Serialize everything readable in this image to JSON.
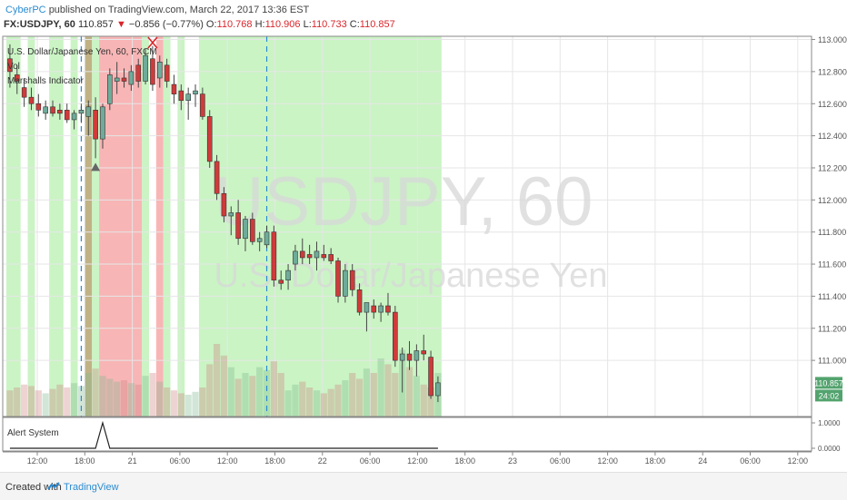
{
  "header": {
    "publisher": "CyberPC",
    "published_text": "published on TradingView.com, March 22, 2017 13:36 EST",
    "symbol": "FX:USDJPY, 60",
    "last": "110.857",
    "change_arrow": "▼",
    "change": "−0.856 (−0.77%)",
    "o_label": "O:",
    "o_value": "110.768",
    "h_label": "H:",
    "h_value": "110.906",
    "l_label": "L:",
    "l_value": "110.733",
    "c_label": "C:",
    "c_value": "110.857"
  },
  "legend": {
    "title": "U.S. Dollar/Japanese Yen, 60, FXCM",
    "vol": "Vol",
    "indicator": "Marshalls Indicator"
  },
  "watermark": {
    "line1": "USDJPY, 60",
    "line2": "U.S. Dollar/Japanese Yen"
  },
  "alert_panel": {
    "title": "Alert System",
    "ticks": [
      "1.0000",
      "0.0000"
    ]
  },
  "price_badges": {
    "last": "110.857",
    "countdown": "24:02"
  },
  "footer": {
    "created_with": "Created with",
    "brand": "TradingView"
  },
  "colors": {
    "up": "#6fab9a",
    "down": "#d13a3a",
    "green_zone": "#b8f0b0",
    "red_zone": "#f7a8a8",
    "olive_zone": "#b5a470",
    "badge": "#53a36e",
    "dashed": "#2a8cd2"
  },
  "chart_data": {
    "type": "candlestick",
    "title": "USDJPY, 60",
    "y_axis_ticks": [
      "113.000",
      "112.800",
      "112.600",
      "112.400",
      "112.200",
      "112.000",
      "111.800",
      "111.600",
      "111.400",
      "111.200",
      "111.000"
    ],
    "ylim": [
      110.65,
      113.02
    ],
    "x_axis_ticks": [
      "12:00",
      "18:00",
      "21",
      "06:00",
      "12:00",
      "18:00",
      "22",
      "06:00",
      "12:00",
      "18:00",
      "23",
      "06:00",
      "12:00",
      "18:00",
      "24",
      "06:00",
      "12:00"
    ],
    "candles": [
      {
        "o": 112.88,
        "h": 112.97,
        "l": 112.7,
        "c": 112.8
      },
      {
        "o": 112.78,
        "h": 112.84,
        "l": 112.66,
        "c": 112.74
      },
      {
        "o": 112.7,
        "h": 112.76,
        "l": 112.58,
        "c": 112.64
      },
      {
        "o": 112.64,
        "h": 112.7,
        "l": 112.56,
        "c": 112.6
      },
      {
        "o": 112.6,
        "h": 112.66,
        "l": 112.52,
        "c": 112.56
      },
      {
        "o": 112.54,
        "h": 112.62,
        "l": 112.5,
        "c": 112.58
      },
      {
        "o": 112.58,
        "h": 112.62,
        "l": 112.52,
        "c": 112.54
      },
      {
        "o": 112.56,
        "h": 112.6,
        "l": 112.5,
        "c": 112.54
      },
      {
        "o": 112.56,
        "h": 112.6,
        "l": 112.48,
        "c": 112.5
      },
      {
        "o": 112.5,
        "h": 112.56,
        "l": 112.44,
        "c": 112.54
      },
      {
        "o": 112.54,
        "h": 112.6,
        "l": 112.48,
        "c": 112.56
      },
      {
        "o": 112.52,
        "h": 112.62,
        "l": 112.4,
        "c": 112.58
      },
      {
        "o": 112.56,
        "h": 112.64,
        "l": 112.26,
        "c": 112.38
      },
      {
        "o": 112.38,
        "h": 112.6,
        "l": 112.32,
        "c": 112.58
      },
      {
        "o": 112.6,
        "h": 112.82,
        "l": 112.56,
        "c": 112.78
      },
      {
        "o": 112.74,
        "h": 112.86,
        "l": 112.66,
        "c": 112.76
      },
      {
        "o": 112.76,
        "h": 112.82,
        "l": 112.7,
        "c": 112.74
      },
      {
        "o": 112.72,
        "h": 112.84,
        "l": 112.68,
        "c": 112.8
      },
      {
        "o": 112.84,
        "h": 112.88,
        "l": 112.7,
        "c": 112.74
      },
      {
        "o": 112.74,
        "h": 112.94,
        "l": 112.72,
        "c": 112.9
      },
      {
        "o": 112.88,
        "h": 112.96,
        "l": 112.68,
        "c": 112.72
      },
      {
        "o": 112.76,
        "h": 112.9,
        "l": 112.7,
        "c": 112.86
      },
      {
        "o": 112.84,
        "h": 112.88,
        "l": 112.7,
        "c": 112.74
      },
      {
        "o": 112.72,
        "h": 112.78,
        "l": 112.6,
        "c": 112.66
      },
      {
        "o": 112.68,
        "h": 112.72,
        "l": 112.56,
        "c": 112.62
      },
      {
        "o": 112.62,
        "h": 112.7,
        "l": 112.5,
        "c": 112.66
      },
      {
        "o": 112.66,
        "h": 112.72,
        "l": 112.58,
        "c": 112.68
      },
      {
        "o": 112.66,
        "h": 112.7,
        "l": 112.5,
        "c": 112.52
      },
      {
        "o": 112.52,
        "h": 112.56,
        "l": 112.2,
        "c": 112.24
      },
      {
        "o": 112.24,
        "h": 112.28,
        "l": 112.0,
        "c": 112.04
      },
      {
        "o": 112.04,
        "h": 112.08,
        "l": 111.86,
        "c": 111.9
      },
      {
        "o": 111.9,
        "h": 111.96,
        "l": 111.78,
        "c": 111.92
      },
      {
        "o": 111.92,
        "h": 112.0,
        "l": 111.72,
        "c": 111.76
      },
      {
        "o": 111.76,
        "h": 111.9,
        "l": 111.68,
        "c": 111.88
      },
      {
        "o": 111.88,
        "h": 111.92,
        "l": 111.72,
        "c": 111.74
      },
      {
        "o": 111.74,
        "h": 111.8,
        "l": 111.68,
        "c": 111.76
      },
      {
        "o": 111.72,
        "h": 111.84,
        "l": 111.7,
        "c": 111.8
      },
      {
        "o": 111.8,
        "h": 111.84,
        "l": 111.46,
        "c": 111.5
      },
      {
        "o": 111.5,
        "h": 111.56,
        "l": 111.44,
        "c": 111.48
      },
      {
        "o": 111.5,
        "h": 111.6,
        "l": 111.44,
        "c": 111.56
      },
      {
        "o": 111.6,
        "h": 111.72,
        "l": 111.56,
        "c": 111.68
      },
      {
        "o": 111.68,
        "h": 111.76,
        "l": 111.6,
        "c": 111.64
      },
      {
        "o": 111.66,
        "h": 111.72,
        "l": 111.6,
        "c": 111.64
      },
      {
        "o": 111.64,
        "h": 111.74,
        "l": 111.56,
        "c": 111.68
      },
      {
        "o": 111.66,
        "h": 111.72,
        "l": 111.62,
        "c": 111.64
      },
      {
        "o": 111.66,
        "h": 111.7,
        "l": 111.6,
        "c": 111.62
      },
      {
        "o": 111.62,
        "h": 111.64,
        "l": 111.36,
        "c": 111.4
      },
      {
        "o": 111.4,
        "h": 111.6,
        "l": 111.36,
        "c": 111.56
      },
      {
        "o": 111.56,
        "h": 111.6,
        "l": 111.4,
        "c": 111.44
      },
      {
        "o": 111.44,
        "h": 111.48,
        "l": 111.28,
        "c": 111.3
      },
      {
        "o": 111.3,
        "h": 111.36,
        "l": 111.18,
        "c": 111.36
      },
      {
        "o": 111.34,
        "h": 111.38,
        "l": 111.26,
        "c": 111.3
      },
      {
        "o": 111.3,
        "h": 111.36,
        "l": 111.24,
        "c": 111.34
      },
      {
        "o": 111.34,
        "h": 111.42,
        "l": 111.28,
        "c": 111.3
      },
      {
        "o": 111.3,
        "h": 111.34,
        "l": 110.96,
        "c": 111.0
      },
      {
        "o": 111.0,
        "h": 111.08,
        "l": 110.8,
        "c": 111.04
      },
      {
        "o": 111.04,
        "h": 111.12,
        "l": 110.94,
        "c": 111.0
      },
      {
        "o": 111.0,
        "h": 111.1,
        "l": 110.9,
        "c": 111.06
      },
      {
        "o": 111.06,
        "h": 111.16,
        "l": 111.0,
        "c": 111.04
      },
      {
        "o": 111.02,
        "h": 111.06,
        "l": 110.76,
        "c": 110.78
      },
      {
        "o": 110.78,
        "h": 110.9,
        "l": 110.74,
        "c": 110.86
      }
    ],
    "volume_relative": [
      0.18,
      0.2,
      0.22,
      0.21,
      0.18,
      0.16,
      0.19,
      0.22,
      0.2,
      0.23,
      0.21,
      0.3,
      0.33,
      0.28,
      0.26,
      0.24,
      0.25,
      0.23,
      0.22,
      0.28,
      0.3,
      0.24,
      0.2,
      0.18,
      0.16,
      0.15,
      0.17,
      0.2,
      0.36,
      0.5,
      0.42,
      0.34,
      0.26,
      0.3,
      0.28,
      0.34,
      0.32,
      0.38,
      0.3,
      0.18,
      0.22,
      0.24,
      0.2,
      0.18,
      0.16,
      0.19,
      0.22,
      0.25,
      0.3,
      0.26,
      0.33,
      0.3,
      0.4,
      0.36,
      0.3,
      0.46,
      0.34,
      0.28,
      0.22,
      0.2,
      0.3
    ],
    "zones": [
      {
        "from": 0,
        "to": 2,
        "type": "green"
      },
      {
        "from": 3,
        "to": 4,
        "type": "green"
      },
      {
        "from": 6,
        "to": 8,
        "type": "green"
      },
      {
        "from": 9,
        "to": 10,
        "type": "green"
      },
      {
        "from": 11,
        "to": 12,
        "type": "olive"
      },
      {
        "from": 12,
        "to": 13,
        "type": "green"
      },
      {
        "from": 13,
        "to": 19,
        "type": "red"
      },
      {
        "from": 19,
        "to": 20,
        "type": "green"
      },
      {
        "from": 21,
        "to": 22,
        "type": "red"
      },
      {
        "from": 22,
        "to": 23,
        "type": "green"
      },
      {
        "from": 24,
        "to": 25,
        "type": "green"
      },
      {
        "from": 27,
        "to": 61,
        "type": "green"
      }
    ],
    "dashed_lines_at_candle": [
      10.5,
      36.5
    ],
    "markers": [
      {
        "candle": 12,
        "type": "up-arrow",
        "label": "▲"
      },
      {
        "candle": 20,
        "type": "cross",
        "label": "X"
      }
    ],
    "alert_series": [
      0,
      0,
      0,
      0,
      0,
      0,
      0,
      0,
      0,
      0,
      0,
      0,
      0,
      1,
      0,
      0,
      0,
      0,
      0,
      0,
      0,
      0,
      0,
      0,
      0,
      0,
      0,
      0,
      0,
      0,
      0,
      0,
      0,
      0,
      0,
      0,
      0,
      0,
      0,
      0,
      0,
      0,
      0,
      0,
      0,
      0,
      0,
      0,
      0,
      0,
      0,
      0,
      0,
      0,
      0,
      0,
      0,
      0,
      0,
      0,
      0
    ],
    "grid": true
  }
}
